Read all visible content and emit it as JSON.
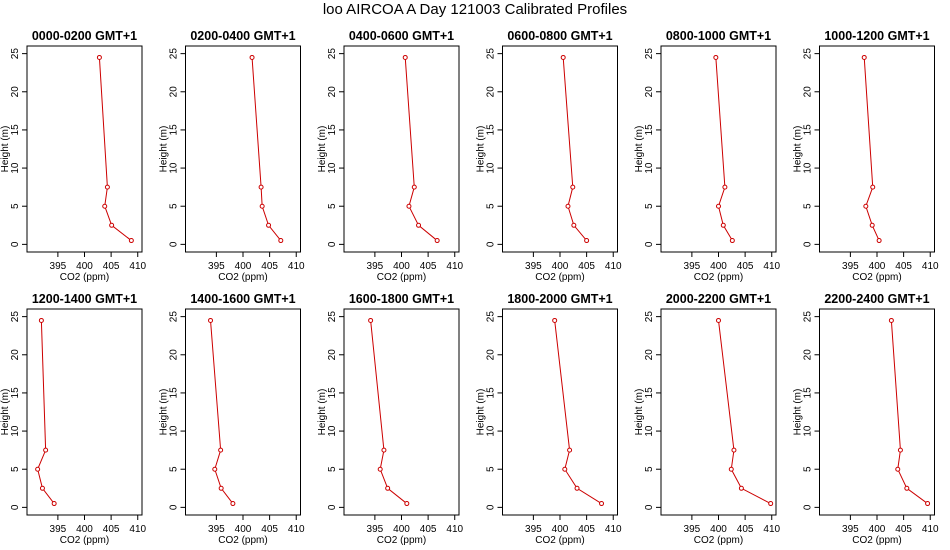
{
  "page": {
    "title": "loo AIRCOA A  Day 121003  Calibrated Profiles"
  },
  "chart_data": [
    {
      "type": "line",
      "title": "0000-0200 GMT+1",
      "xlabel": "CO2 (ppm)",
      "ylabel": "Height (m)",
      "xlim": [
        390,
        410
      ],
      "ylim": [
        0,
        25
      ],
      "xticks": [
        395,
        400,
        405,
        410
      ],
      "yticks": [
        0,
        5,
        10,
        15,
        20,
        25
      ],
      "series": [
        {
          "color": "#cc0000",
          "x": [
            408.8,
            405.1,
            403.8,
            404.3,
            402.8
          ],
          "y": [
            0.5,
            2.5,
            5,
            7.5,
            24.5
          ]
        }
      ]
    },
    {
      "type": "line",
      "title": "0200-0400 GMT+1",
      "xlabel": "CO2 (ppm)",
      "ylabel": "Height (m)",
      "xlim": [
        390,
        410
      ],
      "ylim": [
        0,
        25
      ],
      "xticks": [
        395,
        400,
        405,
        410
      ],
      "yticks": [
        0,
        5,
        10,
        15,
        20,
        25
      ],
      "series": [
        {
          "color": "#cc0000",
          "x": [
            407.1,
            404.8,
            403.6,
            403.4,
            401.7
          ],
          "y": [
            0.5,
            2.5,
            5,
            7.5,
            24.5
          ]
        }
      ]
    },
    {
      "type": "line",
      "title": "0400-0600 GMT+1",
      "xlabel": "CO2 (ppm)",
      "ylabel": "Height (m)",
      "xlim": [
        390,
        410
      ],
      "ylim": [
        0,
        25
      ],
      "xticks": [
        395,
        400,
        405,
        410
      ],
      "yticks": [
        0,
        5,
        10,
        15,
        20,
        25
      ],
      "series": [
        {
          "color": "#cc0000",
          "x": [
            406.7,
            403.2,
            401.4,
            402.4,
            400.7
          ],
          "y": [
            0.5,
            2.5,
            5,
            7.5,
            24.5
          ]
        }
      ]
    },
    {
      "type": "line",
      "title": "0600-0800 GMT+1",
      "xlabel": "CO2 (ppm)",
      "ylabel": "Height (m)",
      "xlim": [
        390,
        410
      ],
      "ylim": [
        0,
        25
      ],
      "xticks": [
        395,
        400,
        405,
        410
      ],
      "yticks": [
        0,
        5,
        10,
        15,
        20,
        25
      ],
      "series": [
        {
          "color": "#cc0000",
          "x": [
            405.0,
            402.6,
            401.5,
            402.4,
            400.6
          ],
          "y": [
            0.5,
            2.5,
            5,
            7.5,
            24.5
          ]
        }
      ]
    },
    {
      "type": "line",
      "title": "0800-1000 GMT+1",
      "xlabel": "CO2 (ppm)",
      "ylabel": "Height (m)",
      "xlim": [
        390,
        410
      ],
      "ylim": [
        0,
        25
      ],
      "xticks": [
        395,
        400,
        405,
        410
      ],
      "yticks": [
        0,
        5,
        10,
        15,
        20,
        25
      ],
      "series": [
        {
          "color": "#cc0000",
          "x": [
            402.6,
            400.9,
            400.0,
            401.2,
            399.5
          ],
          "y": [
            0.5,
            2.5,
            5,
            7.5,
            24.5
          ]
        }
      ]
    },
    {
      "type": "line",
      "title": "1000-1200 GMT+1",
      "xlabel": "CO2 (ppm)",
      "ylabel": "Height (m)",
      "xlim": [
        390,
        410
      ],
      "ylim": [
        0,
        25
      ],
      "xticks": [
        395,
        400,
        405,
        410
      ],
      "yticks": [
        0,
        5,
        10,
        15,
        20,
        25
      ],
      "series": [
        {
          "color": "#cc0000",
          "x": [
            400.4,
            399.1,
            397.9,
            399.2,
            397.6
          ],
          "y": [
            0.5,
            2.5,
            5,
            7.5,
            24.5
          ]
        }
      ]
    },
    {
      "type": "line",
      "title": "1200-1400 GMT+1",
      "xlabel": "CO2 (ppm)",
      "ylabel": "Height (m)",
      "xlim": [
        390,
        410
      ],
      "ylim": [
        0,
        25
      ],
      "xticks": [
        395,
        400,
        405,
        410
      ],
      "yticks": [
        0,
        5,
        10,
        15,
        20,
        25
      ],
      "series": [
        {
          "color": "#cc0000",
          "x": [
            394.3,
            392.1,
            391.2,
            392.7,
            391.9
          ],
          "y": [
            0.5,
            2.5,
            5,
            7.5,
            24.5
          ]
        }
      ]
    },
    {
      "type": "line",
      "title": "1400-1600 GMT+1",
      "xlabel": "CO2 (ppm)",
      "ylabel": "Height (m)",
      "xlim": [
        390,
        410
      ],
      "ylim": [
        0,
        25
      ],
      "xticks": [
        395,
        400,
        405,
        410
      ],
      "yticks": [
        0,
        5,
        10,
        15,
        20,
        25
      ],
      "series": [
        {
          "color": "#cc0000",
          "x": [
            398.1,
            395.9,
            394.7,
            395.8,
            393.9
          ],
          "y": [
            0.5,
            2.5,
            5,
            7.5,
            24.5
          ]
        }
      ]
    },
    {
      "type": "line",
      "title": "1600-1800 GMT+1",
      "xlabel": "CO2 (ppm)",
      "ylabel": "Height (m)",
      "xlim": [
        390,
        410
      ],
      "ylim": [
        0,
        25
      ],
      "xticks": [
        395,
        400,
        405,
        410
      ],
      "yticks": [
        0,
        5,
        10,
        15,
        20,
        25
      ],
      "series": [
        {
          "color": "#cc0000",
          "x": [
            401.0,
            397.4,
            396.0,
            396.7,
            394.2
          ],
          "y": [
            0.5,
            2.5,
            5,
            7.5,
            24.5
          ]
        }
      ]
    },
    {
      "type": "line",
      "title": "1800-2000 GMT+1",
      "xlabel": "CO2 (ppm)",
      "ylabel": "Height (m)",
      "xlim": [
        390,
        410
      ],
      "ylim": [
        0,
        25
      ],
      "xticks": [
        395,
        400,
        405,
        410
      ],
      "yticks": [
        0,
        5,
        10,
        15,
        20,
        25
      ],
      "series": [
        {
          "color": "#cc0000",
          "x": [
            407.8,
            403.2,
            400.9,
            401.8,
            399.0
          ],
          "y": [
            0.5,
            2.5,
            5,
            7.5,
            24.5
          ]
        }
      ]
    },
    {
      "type": "line",
      "title": "2000-2200 GMT+1",
      "xlabel": "CO2 (ppm)",
      "ylabel": "Height (m)",
      "xlim": [
        390,
        410
      ],
      "ylim": [
        0,
        25
      ],
      "xticks": [
        395,
        400,
        405,
        410
      ],
      "yticks": [
        0,
        5,
        10,
        15,
        20,
        25
      ],
      "series": [
        {
          "color": "#cc0000",
          "x": [
            409.8,
            404.3,
            402.4,
            402.9,
            400.0
          ],
          "y": [
            0.5,
            2.5,
            5,
            7.5,
            24.5
          ]
        }
      ]
    },
    {
      "type": "line",
      "title": "2200-2400 GMT+1",
      "xlabel": "CO2 (ppm)",
      "ylabel": "Height (m)",
      "xlim": [
        390,
        410
      ],
      "ylim": [
        0,
        25
      ],
      "xticks": [
        395,
        400,
        405,
        410
      ],
      "yticks": [
        0,
        5,
        10,
        15,
        20,
        25
      ],
      "series": [
        {
          "color": "#cc0000",
          "x": [
            409.5,
            405.6,
            403.9,
            404.4,
            402.7
          ],
          "y": [
            0.5,
            2.5,
            5,
            7.5,
            24.5
          ]
        }
      ]
    }
  ]
}
